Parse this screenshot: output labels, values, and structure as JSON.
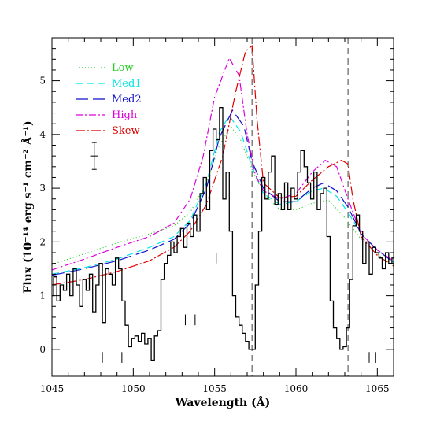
{
  "chart_data": {
    "type": "line",
    "xlabel": "Wavelength (Å)",
    "ylabel": "Flux (10⁻¹⁴ erg s⁻¹ cm⁻² Å⁻¹)",
    "xlim": [
      1045,
      1066
    ],
    "ylim": [
      -0.5,
      5.8
    ],
    "xticks": [
      1045,
      1050,
      1055,
      1060,
      1065
    ],
    "yticks": [
      0,
      1,
      2,
      3,
      4,
      5
    ],
    "vertical_dashed_lines": [
      1057.3,
      1063.2
    ],
    "error_bar": {
      "x": 1047.6,
      "y": 3.6,
      "yerr": 0.25,
      "xerr": 0.25
    },
    "absorption_markers": [
      {
        "x": 1048.1,
        "y0": -0.25,
        "y1": -0.05
      },
      {
        "x": 1049.3,
        "y0": -0.25,
        "y1": -0.05
      },
      {
        "x": 1053.2,
        "y0": 0.45,
        "y1": 0.65
      },
      {
        "x": 1053.8,
        "y0": 0.45,
        "y1": 0.65
      },
      {
        "x": 1055.1,
        "y0": 1.6,
        "y1": 1.8
      },
      {
        "x": 1064.5,
        "y0": -0.25,
        "y1": -0.05
      },
      {
        "x": 1064.9,
        "y0": -0.25,
        "y1": -0.05
      }
    ],
    "series": [
      {
        "name": "Low",
        "color": "#22cc22",
        "dash": "1,3",
        "x": [
          1045,
          1047,
          1049,
          1051,
          1052.5,
          1053.5,
          1054.5,
          1055.3,
          1056.0,
          1056.6,
          1057.3,
          1058,
          1059,
          1060,
          1061,
          1062,
          1063,
          1064,
          1065,
          1066
        ],
        "y": [
          1.58,
          1.78,
          1.98,
          2.15,
          2.3,
          2.55,
          3.1,
          3.8,
          4.15,
          3.9,
          3.35,
          2.9,
          2.6,
          2.6,
          2.72,
          2.78,
          2.45,
          2.05,
          1.78,
          1.55
        ]
      },
      {
        "name": "Med1",
        "color": "#00e5e5",
        "dash": "9,5",
        "x": [
          1045,
          1047,
          1049,
          1051,
          1052.5,
          1053.5,
          1054.5,
          1055.3,
          1055.9,
          1056.6,
          1057.3,
          1058,
          1059,
          1060,
          1061,
          1061.7,
          1062.5,
          1063.2,
          1064,
          1065,
          1066
        ],
        "y": [
          1.4,
          1.52,
          1.68,
          1.9,
          2.1,
          2.4,
          3.1,
          4.05,
          4.35,
          4.05,
          3.4,
          2.9,
          2.7,
          2.75,
          2.95,
          3.0,
          2.85,
          2.55,
          2.15,
          1.85,
          1.62
        ]
      },
      {
        "name": "Med2",
        "color": "#1111cc",
        "dash": "16,6",
        "x": [
          1045,
          1047,
          1049,
          1051,
          1052.5,
          1053.5,
          1054.5,
          1055.3,
          1056.1,
          1056.8,
          1057.3,
          1058,
          1059,
          1060,
          1061,
          1061.7,
          1062.5,
          1063.2,
          1064,
          1065,
          1066
        ],
        "y": [
          1.38,
          1.5,
          1.65,
          1.85,
          2.05,
          2.35,
          3.0,
          3.95,
          4.45,
          4.15,
          3.5,
          3.0,
          2.75,
          2.75,
          3.0,
          3.1,
          2.95,
          2.65,
          2.15,
          1.85,
          1.62
        ]
      },
      {
        "name": "High",
        "color": "#dd00dd",
        "dash": "9,3,2,3",
        "x": [
          1045,
          1047,
          1049,
          1051,
          1052.5,
          1053.5,
          1054.3,
          1055.0,
          1055.9,
          1056.5,
          1057.0,
          1057.5,
          1058,
          1059,
          1060,
          1061,
          1061.8,
          1062.5,
          1063.2,
          1064,
          1065,
          1066
        ],
        "y": [
          1.48,
          1.68,
          1.9,
          2.1,
          2.35,
          2.8,
          3.6,
          4.7,
          5.42,
          5.1,
          4.0,
          3.25,
          2.95,
          2.8,
          2.9,
          3.3,
          3.52,
          3.4,
          2.8,
          2.15,
          1.85,
          1.65
        ]
      },
      {
        "name": "Skew",
        "color": "#dd0000",
        "dash": "12,3,2,3",
        "x": [
          1045,
          1047,
          1049,
          1051,
          1052.5,
          1053.5,
          1054.5,
          1055.5,
          1056.3,
          1056.9,
          1057.3,
          1057.6,
          1058,
          1059,
          1060,
          1061,
          1062,
          1062.8,
          1063.2,
          1063.5,
          1064,
          1065,
          1066
        ],
        "y": [
          1.2,
          1.3,
          1.45,
          1.65,
          1.9,
          2.2,
          2.7,
          3.6,
          4.8,
          5.55,
          5.65,
          4.3,
          3.1,
          2.82,
          2.85,
          3.15,
          3.4,
          3.52,
          3.45,
          2.8,
          2.1,
          1.75,
          1.55
        ]
      }
    ],
    "observed": {
      "name": "Observed",
      "color": "#000000",
      "x": [
        1045.0,
        1045.2,
        1045.4,
        1045.6,
        1045.8,
        1046.0,
        1046.2,
        1046.4,
        1046.6,
        1046.8,
        1047.0,
        1047.2,
        1047.4,
        1047.6,
        1047.8,
        1048.0,
        1048.2,
        1048.4,
        1048.6,
        1048.8,
        1049.0,
        1049.2,
        1049.4,
        1049.6,
        1049.8,
        1050.0,
        1050.2,
        1050.4,
        1050.6,
        1050.8,
        1051.0,
        1051.2,
        1051.4,
        1051.6,
        1051.8,
        1052.0,
        1052.2,
        1052.4,
        1052.6,
        1052.8,
        1053.0,
        1053.2,
        1053.4,
        1053.6,
        1053.8,
        1054.0,
        1054.2,
        1054.4,
        1054.6,
        1054.8,
        1055.0,
        1055.2,
        1055.4,
        1055.6,
        1055.8,
        1056.0,
        1056.2,
        1056.4,
        1056.6,
        1056.8,
        1057.0,
        1057.2,
        1057.4,
        1057.6,
        1057.8,
        1058.0,
        1058.2,
        1058.4,
        1058.6,
        1058.8,
        1059.0,
        1059.2,
        1059.4,
        1059.6,
        1059.8,
        1060.0,
        1060.2,
        1060.4,
        1060.6,
        1060.8,
        1061.0,
        1061.2,
        1061.4,
        1061.6,
        1061.8,
        1062.0,
        1062.2,
        1062.4,
        1062.6,
        1062.8,
        1063.0,
        1063.2,
        1063.4,
        1063.6,
        1063.8,
        1064.0,
        1064.2,
        1064.4,
        1064.6,
        1064.8,
        1065.0,
        1065.2,
        1065.4,
        1065.6,
        1065.8,
        1066.0
      ],
      "y": [
        1.0,
        1.35,
        0.9,
        1.2,
        1.1,
        1.4,
        1.0,
        1.5,
        1.2,
        0.8,
        1.3,
        1.1,
        1.4,
        0.7,
        1.2,
        1.6,
        0.5,
        1.5,
        1.4,
        1.2,
        1.7,
        1.5,
        0.9,
        0.45,
        0.05,
        0.2,
        0.25,
        0.15,
        0.3,
        0.1,
        0.2,
        -0.2,
        0.25,
        0.35,
        1.3,
        1.6,
        1.75,
        2.0,
        1.8,
        2.1,
        2.25,
        1.9,
        2.35,
        2.1,
        2.5,
        2.2,
        2.9,
        3.2,
        2.6,
        3.7,
        4.1,
        3.9,
        4.5,
        2.8,
        3.3,
        2.2,
        1.0,
        0.6,
        0.45,
        0.3,
        0.15,
        0.0,
        0.0,
        1.2,
        2.2,
        3.2,
        2.8,
        3.3,
        3.6,
        2.7,
        2.9,
        2.6,
        3.1,
        2.6,
        3.0,
        2.8,
        3.3,
        3.7,
        3.4,
        3.1,
        2.8,
        3.3,
        2.6,
        2.9,
        3.0,
        2.1,
        0.9,
        0.4,
        0.2,
        0.0,
        0.05,
        0.4,
        1.3,
        2.3,
        2.5,
        2.2,
        1.6,
        2.0,
        1.4,
        1.9,
        1.8,
        1.7,
        1.5,
        1.8,
        1.6,
        1.7
      ]
    },
    "legend": {
      "placement": "top-left",
      "entries": [
        "Low",
        "Med1",
        "Med2",
        "High",
        "Skew"
      ]
    }
  }
}
